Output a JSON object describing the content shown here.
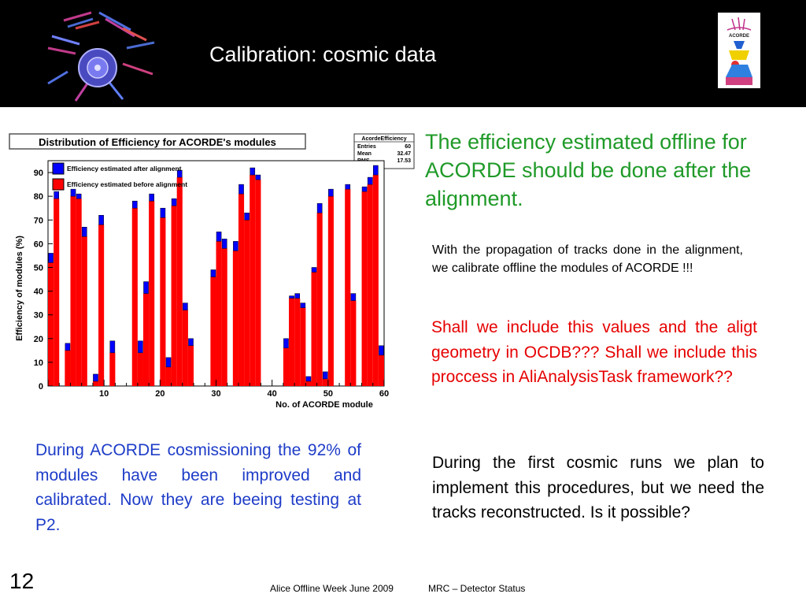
{
  "slide": {
    "title": "Calibration: cosmic data",
    "page_number": "12",
    "footer_left": "Alice Offline Week June 2009",
    "footer_right": "MRC – Detector Status"
  },
  "logos": {
    "right_logo_text": "ACORDE"
  },
  "texts": {
    "green": "The efficiency estimated offline for ACORDE should be done after the alignment.",
    "small": "With the propagation of tracks done in the alignment, we calibrate offline the modules of ACORDE !!!",
    "red": "Shall we include this values and the aligt geometry in OCDB??? Shall we include this proccess in AliAnalysisTask framework??",
    "blue": "During ACORDE cosmissioning the 92% of modules have been improved and calibrated. Now they are beeing testing at P2.",
    "black": "During the first cosmic runs we plan to implement this procedures, but we need the tracks reconstructed. Is it possible?"
  },
  "chart_data": {
    "type": "bar",
    "title": "Distribution of Efficiency for ACORDE's modules",
    "xlabel": "No. of ACORDE module",
    "ylabel": "Efficiency of modules (%)",
    "xlim": [
      0,
      60
    ],
    "ylim": [
      0,
      95
    ],
    "xticks": [
      10,
      20,
      30,
      40,
      50,
      60
    ],
    "yticks": [
      0,
      10,
      20,
      30,
      40,
      50,
      60,
      70,
      80,
      90
    ],
    "stats": {
      "name": "AcordeEfficiency",
      "rows": [
        {
          "label": "Entries",
          "value": "60"
        },
        {
          "label": "Mean",
          "value": "32.47"
        },
        {
          "label": "RMS",
          "value": "17.53"
        }
      ]
    },
    "series": [
      {
        "name": "Efficiency estimated after alignment",
        "color": "#0000ff",
        "values": [
          56,
          82,
          0,
          18,
          83,
          81,
          67,
          0,
          5,
          72,
          0,
          19,
          0,
          0,
          0,
          78,
          19,
          44,
          81,
          0,
          75,
          12,
          79,
          91,
          35,
          20,
          0,
          0,
          0,
          49,
          65,
          62,
          0,
          61,
          85,
          73,
          92,
          89,
          0,
          0,
          0,
          0,
          20,
          38,
          39,
          35,
          4,
          50,
          77,
          6,
          83,
          0,
          0,
          85,
          39,
          0,
          84,
          88,
          93,
          17
        ]
      },
      {
        "name": "Efficiency estimated before alignment",
        "color": "#ff0000",
        "values": [
          52,
          79,
          0,
          15,
          80,
          79,
          63,
          0,
          2,
          68,
          0,
          14,
          0,
          0,
          0,
          75,
          14,
          39,
          78,
          0,
          71,
          8,
          76,
          88,
          32,
          17,
          0,
          0,
          0,
          46,
          61,
          58,
          0,
          57,
          81,
          70,
          89,
          87,
          0,
          0,
          0,
          0,
          16,
          37,
          37,
          33,
          2,
          48,
          73,
          3,
          80,
          0,
          0,
          83,
          36,
          0,
          82,
          85,
          89,
          13
        ]
      }
    ]
  }
}
